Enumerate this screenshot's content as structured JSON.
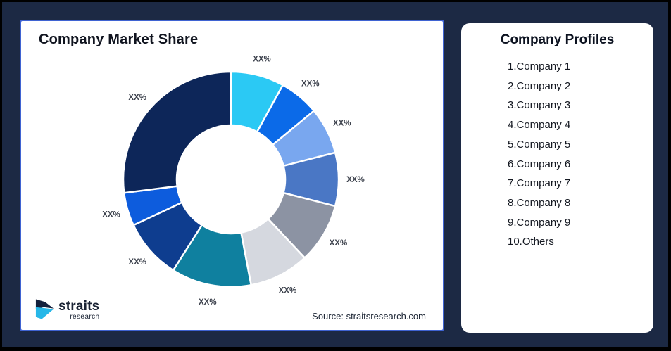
{
  "canvas": {
    "background": "#1c2944",
    "outer_border": "#000000",
    "card_background": "#ffffff",
    "left_card_border": "#3f63d2"
  },
  "left_card": {
    "title": "Company Market Share",
    "source": "Source: straitsresearch.com"
  },
  "logo": {
    "text": "straits",
    "subtext": "research",
    "mark_dark": "#14213d",
    "mark_cyan": "#27b7e8"
  },
  "right_card": {
    "title": "Company Profiles",
    "items": [
      "1.Company 1",
      "2.Company 2",
      "3.Company 3",
      "4.Company 4",
      "5.Company 5",
      "6.Company 6",
      "7.Company 7",
      "8.Company 8",
      "9.Company 9",
      "10.Others"
    ]
  },
  "chart_data": {
    "type": "pie",
    "variant": "donut",
    "title": "Company Market Share",
    "start_angle_deg": 0,
    "direction": "clockwise",
    "inner_radius_ratio": 0.5,
    "legend_position": "none",
    "label_style": {
      "color": "#3d424d",
      "all_labels_masked_as": "XX%"
    },
    "segments": [
      {
        "name": "Company 1",
        "label": "XX%",
        "value": 8,
        "color": "#2bc9f4"
      },
      {
        "name": "Company 2",
        "label": "XX%",
        "value": 6,
        "color": "#0b6ae8"
      },
      {
        "name": "Company 3",
        "label": "XX%",
        "value": 7,
        "color": "#79a7ef"
      },
      {
        "name": "Company 4",
        "label": "XX%",
        "value": 8,
        "color": "#4a77c5"
      },
      {
        "name": "Company 5",
        "label": "XX%",
        "value": 9,
        "color": "#8c93a3"
      },
      {
        "name": "Company 6",
        "label": "XX%",
        "value": 9,
        "color": "#d5d8df"
      },
      {
        "name": "Company 7",
        "label": "XX%",
        "value": 12,
        "color": "#0f809f"
      },
      {
        "name": "Company 8",
        "label": "XX%",
        "value": 9,
        "color": "#0e3d8f"
      },
      {
        "name": "Company 9",
        "label": "XX%",
        "value": 5,
        "color": "#0d5cdd"
      },
      {
        "name": "Others",
        "label": "XX%",
        "value": 27,
        "color": "#0d2659"
      }
    ]
  }
}
